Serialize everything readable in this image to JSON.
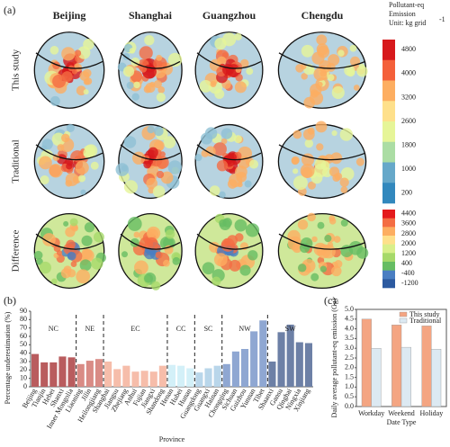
{
  "panel_a": {
    "label": "(a)",
    "columns": [
      "Beijing",
      "Shanghai",
      "Guangzhou",
      "Chengdu"
    ],
    "rows": [
      "This study",
      "Traditional",
      "Difference"
    ],
    "colorbar_title": [
      "Pollutant-eq",
      "Emission",
      "Unit: kg grid"
    ],
    "colorbar_unit_sup": "-1",
    "colorbar_ticks": [
      4800,
      4000,
      3200,
      2600,
      1800,
      1000,
      200
    ],
    "colorbar_colors": [
      "#d7191c",
      "#f4603a",
      "#fdae61",
      "#fee08b",
      "#e6f598",
      "#abdda4",
      "#66a8c9",
      "#3288bd"
    ],
    "diff_ticks": [
      4400,
      3600,
      2800,
      2000,
      1200,
      400,
      -400,
      -1200
    ],
    "diff_colors": [
      "#e41a1c",
      "#f46d43",
      "#fdae61",
      "#fee08b",
      "#d9ef8b",
      "#a6d96a",
      "#66bd63",
      "#4a7ec2",
      "#2c5aa0"
    ]
  },
  "chart_data": [
    {
      "type": "bar",
      "panel_label": "(b)",
      "y_label": "Percentage underestimation (%)",
      "x_label": "Province",
      "categories": [
        "Beijing",
        "Tianjin",
        "Hebei",
        "Shanxi",
        "Inner Mongolia",
        "Liaoning",
        "Jilin",
        "Heilongjiang",
        "Shanghai",
        "Jiangsu",
        "Zhejiang",
        "Anhui",
        "Fujian",
        "Jiangxi",
        "Shandong",
        "Henan",
        "Hubei",
        "Hunan",
        "Guangdong",
        "Guangxi",
        "Hainan",
        "Chongqing",
        "Sichuan",
        "Guizhou",
        "Yunnan",
        "Tibet",
        "Shaanxi",
        "Gansu",
        "Qinghai",
        "Ningxia",
        "Xinjiang"
      ],
      "values": [
        39,
        29,
        29,
        36,
        35,
        27,
        31,
        33,
        30,
        21,
        25,
        18,
        19,
        18,
        25,
        26,
        25,
        22,
        17,
        22,
        25,
        27,
        42,
        45,
        66,
        79,
        30,
        65,
        74,
        53,
        52
      ],
      "regions": [
        "NC",
        "NC",
        "NC",
        "NC",
        "NC",
        "NE",
        "NE",
        "NE",
        "EC",
        "EC",
        "EC",
        "EC",
        "EC",
        "EC",
        "EC",
        "CC",
        "CC",
        "CC",
        "SC",
        "SC",
        "SC",
        "NW",
        "NW",
        "NW",
        "NW",
        "NW",
        "SW",
        "SW",
        "SW",
        "SW",
        "SW"
      ],
      "colors": [
        "#b95c5e",
        "#b95c5e",
        "#b95c5e",
        "#b95c5e",
        "#b95c5e",
        "#d98b85",
        "#d98b85",
        "#d98b85",
        "#f6bdaa",
        "#f6bdaa",
        "#f6bdaa",
        "#f6bdaa",
        "#f6bdaa",
        "#f6bdaa",
        "#f6bdaa",
        "#d3f0f8",
        "#d3f0f8",
        "#d3f0f8",
        "#b9d6ea",
        "#b9d6ea",
        "#b9d6ea",
        "#8fa7d2",
        "#8fa7d2",
        "#8fa7d2",
        "#8fa7d2",
        "#8fa7d2",
        "#6d80a6",
        "#6d80a6",
        "#6d80a6",
        "#6d80a6",
        "#6d80a6"
      ],
      "ylim": [
        0,
        90
      ],
      "yticks": [
        0,
        10,
        20,
        30,
        40,
        50,
        60,
        70,
        80,
        90
      ]
    },
    {
      "type": "grouped_bar",
      "panel_label": "(c)",
      "y_label": "Daily average pollutant-eq emission (Gg)",
      "x_label": "Date Type",
      "categories": [
        "Workday",
        "Weekend",
        "Holiday"
      ],
      "series": [
        {
          "name": "This study",
          "color": "#f4a582",
          "values": [
            4.5,
            4.2,
            4.15
          ]
        },
        {
          "name": "Traditional",
          "color": "#dce9f2",
          "values": [
            3.0,
            3.05,
            2.95
          ]
        }
      ],
      "ylim": [
        0,
        5
      ],
      "yticks": [
        {
          "value": 0,
          "label": "0.0"
        },
        {
          "value": 0.5,
          "label": "0.5"
        },
        {
          "value": 1,
          "label": "1.0"
        },
        {
          "value": 1.5,
          "label": "1.5"
        },
        {
          "value": 2,
          "label": "2.0"
        },
        {
          "value": 2.5,
          "label": "2.5"
        },
        {
          "value": 3,
          "label": "3.0"
        },
        {
          "value": 3.5,
          "label": "3.5"
        },
        {
          "value": 4,
          "label": "4.0"
        },
        {
          "value": 4.5,
          "label": "4.5"
        },
        {
          "value": 5,
          "label": "5.0"
        }
      ]
    }
  ]
}
